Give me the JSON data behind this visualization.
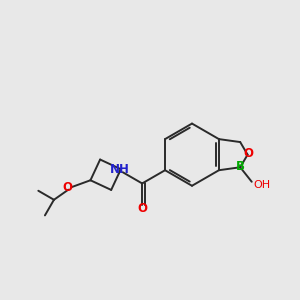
{
  "bg_color": "#e8e8e8",
  "bond_color": "#2a2a2a",
  "atom_colors": {
    "O": "#ee0000",
    "N": "#2222cc",
    "B": "#00aa00",
    "H": "#2a2a2a"
  },
  "font_size": 8.5,
  "line_width": 1.4,
  "fig_size": [
    3.0,
    3.0
  ],
  "dpi": 100
}
